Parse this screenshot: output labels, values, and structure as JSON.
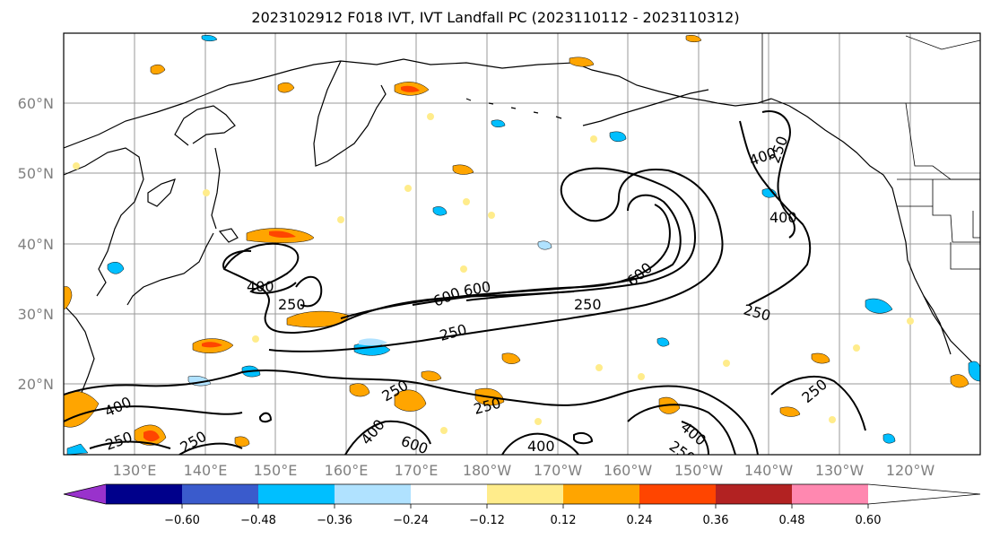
{
  "title": "2023102912 F018 IVT, IVT Landfall PC (2023110112 - 2023110312)",
  "lon_labels": [
    "130°E",
    "140°E",
    "150°E",
    "160°E",
    "170°E",
    "180°W",
    "170°W",
    "160°W",
    "150°W",
    "140°W",
    "130°W",
    "120°W"
  ],
  "lat_labels": [
    "60°N",
    "50°N",
    "40°N",
    "30°N",
    "20°N"
  ],
  "colorbar": {
    "colors": [
      "#9932cc",
      "#00008b",
      "#3a5bcc",
      "#00bfff",
      "#b0e2ff",
      "#ffffff",
      "#ffec8b",
      "#ffa500",
      "#ff4500",
      "#b22222",
      "#ff88b0"
    ],
    "tick_labels": [
      "−0.60",
      "−0.48",
      "−0.36",
      "−0.24",
      "−0.12",
      "0.12",
      "0.24",
      "0.36",
      "0.48",
      "0.60"
    ]
  },
  "contour_labels": [
    "600",
    "600",
    "250",
    "600",
    "400",
    "250",
    "400",
    "250",
    "250",
    "400",
    "250",
    "400",
    "250",
    "250",
    "250",
    "400",
    "600",
    "400",
    "400",
    "250",
    "250",
    "250"
  ],
  "map_colors": {
    "positive_fill": "#ffa500",
    "positive_core": "#ff4500",
    "negative_fill": "#00bfff",
    "grid": "#999999"
  }
}
